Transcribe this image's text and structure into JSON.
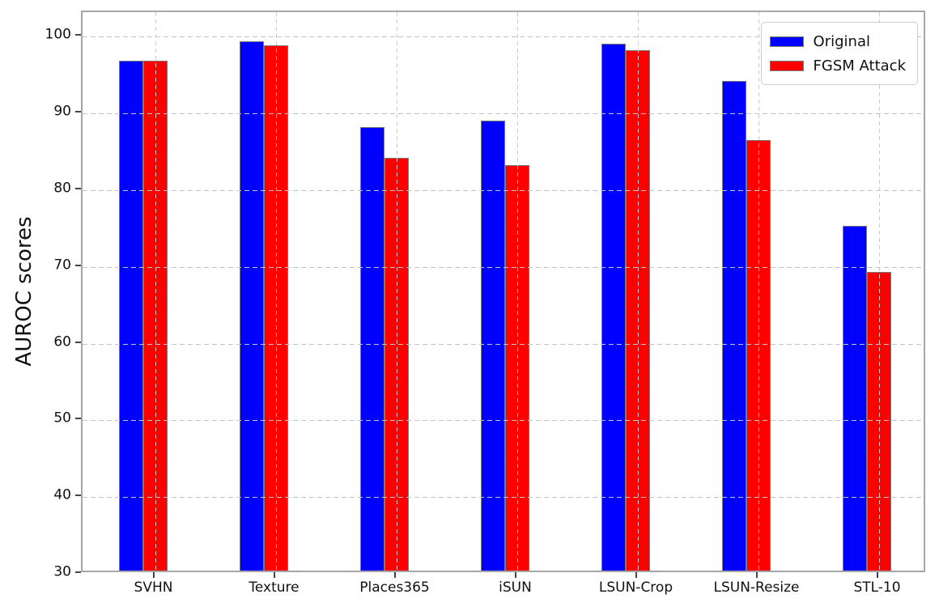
{
  "chart_data": {
    "type": "bar",
    "title": "",
    "xlabel": "",
    "ylabel": "AUROC scores",
    "categories": [
      "SVHN",
      "Texture",
      "Places365",
      "iSUN",
      "LSUN-Crop",
      "LSUN-Resize",
      "STL-10"
    ],
    "series": [
      {
        "name": "Original",
        "color": "#0000ff",
        "values": [
          96.4,
          99.0,
          87.8,
          88.6,
          98.7,
          93.8,
          74.9
        ]
      },
      {
        "name": "FGSM Attack",
        "color": "#ff0000",
        "values": [
          96.5,
          98.5,
          83.8,
          82.8,
          97.8,
          86.1,
          68.9
        ]
      }
    ],
    "ylim": [
      30,
      103.2
    ],
    "yticks": [
      30,
      40,
      50,
      60,
      70,
      80,
      90,
      100
    ],
    "grid": true,
    "grid_style": "dashed",
    "legend_position": "upper right",
    "bar_edge_color": "#7a7a7a",
    "spine_color": "#a6a6a6"
  }
}
